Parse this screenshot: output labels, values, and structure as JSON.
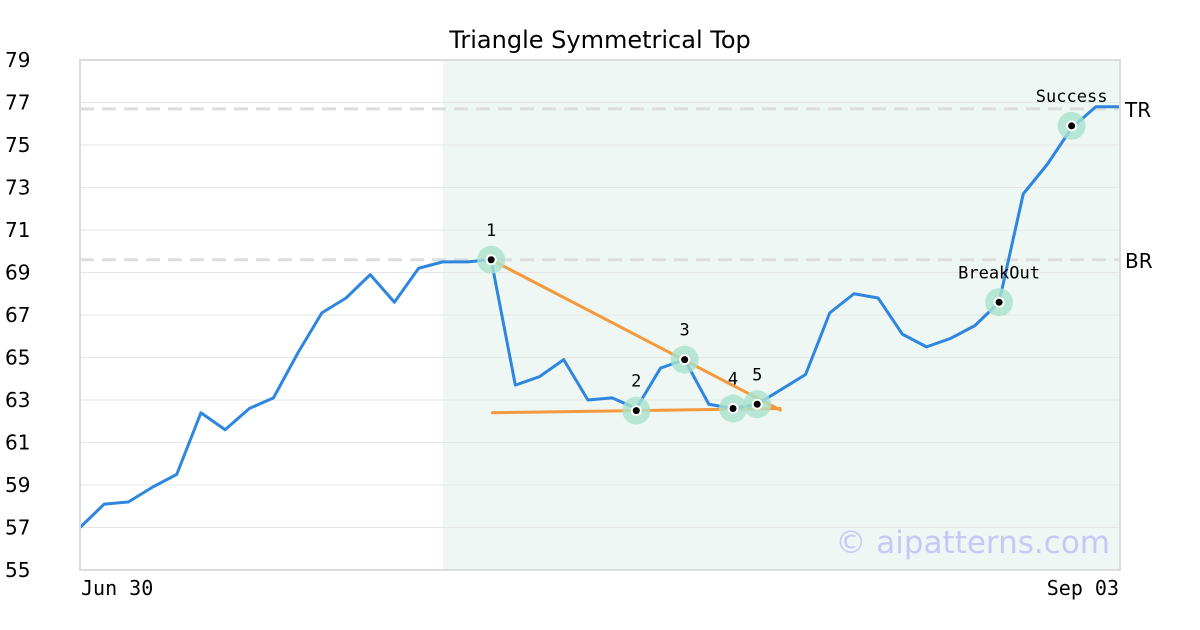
{
  "chart_data": {
    "type": "line",
    "title": "Triangle Symmetrical Top",
    "ylim": [
      55,
      79
    ],
    "yticks": [
      55,
      57,
      59,
      61,
      63,
      65,
      67,
      69,
      71,
      73,
      75,
      77,
      79
    ],
    "x_tick_labels": [
      "Jun 30",
      "Sep 03"
    ],
    "x_count": 44,
    "series": [
      {
        "values": [
          57.0,
          58.1,
          58.2,
          58.9,
          59.5,
          62.4,
          61.6,
          62.6,
          63.1,
          65.2,
          67.1,
          67.8,
          68.9,
          67.6,
          69.2,
          69.5,
          69.5,
          69.6,
          63.7,
          64.1,
          64.9,
          63.0,
          63.1,
          62.6,
          64.5,
          64.9,
          62.8,
          62.6,
          62.8,
          63.5,
          64.2,
          67.1,
          68.0,
          67.8,
          66.1,
          65.5,
          65.9,
          66.5,
          67.6,
          72.7,
          74.1,
          75.8,
          76.8,
          76.8
        ],
        "color": "#2e86de"
      }
    ],
    "pattern_region": {
      "x_start": 15,
      "x_end": 43,
      "color": "#eef7f3"
    },
    "reference_lines": [
      {
        "label": "TR",
        "value": 76.7
      },
      {
        "label": "BR",
        "value": 69.6
      }
    ],
    "trend_lines": [
      {
        "from": [
          17,
          69.6
        ],
        "to": [
          29,
          62.5
        ],
        "color": "#f59a3c"
      },
      {
        "from": [
          17,
          62.4
        ],
        "to": [
          29,
          62.6
        ],
        "color": "#f59a3c"
      }
    ],
    "pattern_points": [
      {
        "label": "1",
        "x": 17,
        "y": 69.6
      },
      {
        "label": "2",
        "x": 23,
        "y": 62.5
      },
      {
        "label": "3",
        "x": 25,
        "y": 64.9
      },
      {
        "label": "4",
        "x": 27,
        "y": 62.6
      },
      {
        "label": "5",
        "x": 28,
        "y": 62.8
      },
      {
        "label": "BreakOut",
        "x": 38,
        "y": 67.6
      },
      {
        "label": "Success",
        "x": 41,
        "y": 75.9
      }
    ],
    "watermark": "© aipatterns.com"
  }
}
